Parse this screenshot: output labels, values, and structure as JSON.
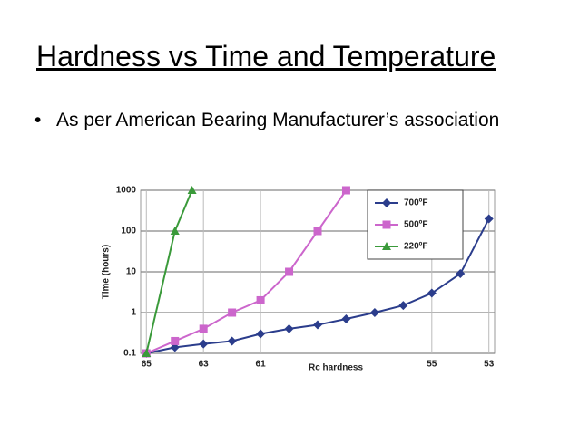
{
  "title": "Hardness vs Time and Temperature",
  "bullet": "As per American Bearing Manufacturer’s association",
  "chart_data": {
    "type": "line",
    "x_label": "Rc hardness",
    "y_label": "Time (hours)",
    "xlim": [
      65.2,
      52.8
    ],
    "xticks": [
      65,
      63,
      61,
      55,
      53
    ],
    "ylim": [
      0.1,
      1000
    ],
    "yticks": [
      0.1,
      1,
      10,
      100,
      1000
    ],
    "log_y": true,
    "grid": true,
    "legend": "upper right",
    "series": [
      {
        "name": "700ºF",
        "color": "#2b3d8c",
        "marker": "diamond",
        "x": [
          65,
          64,
          63,
          62,
          61,
          60,
          59,
          58,
          57,
          56,
          55,
          54,
          53
        ],
        "values": [
          0.1,
          0.14,
          0.17,
          0.2,
          0.3,
          0.4,
          0.5,
          0.7,
          1,
          1.5,
          3,
          9,
          200
        ]
      },
      {
        "name": "500ºF",
        "color": "#cc66cc",
        "marker": "square",
        "x": [
          65,
          64,
          63,
          62,
          61,
          60,
          59,
          58
        ],
        "values": [
          0.1,
          0.2,
          0.4,
          1,
          2,
          10,
          100,
          1000
        ]
      },
      {
        "name": "220ºF",
        "color": "#3a9a3a",
        "marker": "triangle",
        "x": [
          65,
          64,
          63.4
        ],
        "values": [
          0.1,
          100,
          1000
        ]
      }
    ]
  }
}
